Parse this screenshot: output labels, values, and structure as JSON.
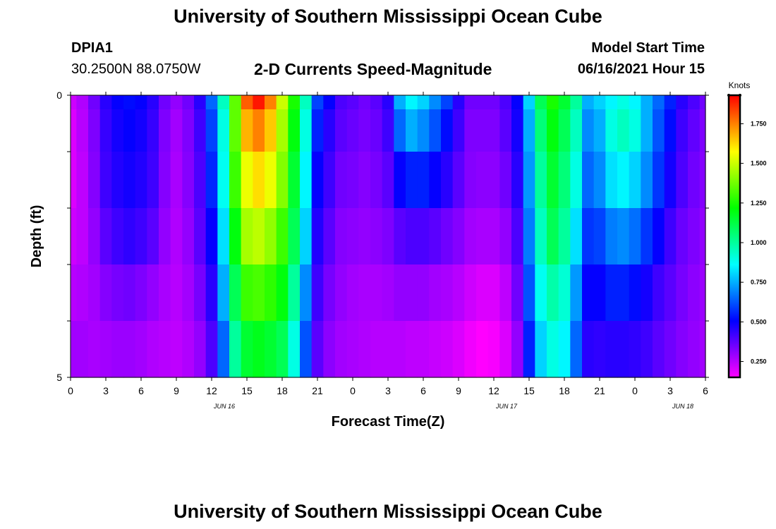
{
  "header": {
    "title": "University of Southern Mississippi Ocean Cube",
    "station_id": "DPIA1",
    "station_coords": "30.2500N  88.0750W",
    "plot_title": "2-D Currents Speed-Magnitude",
    "model_start_label": "Model Start Time",
    "model_start_value": "06/16/2021 Hour 15"
  },
  "footer": {
    "title": "University of Southern Mississippi Ocean Cube"
  },
  "chart_data": {
    "type": "heatmap",
    "xlabel": "Forecast Time(Z)",
    "ylabel": "Depth (ft)",
    "x_hours": [
      0,
      54
    ],
    "y_range": [
      0,
      5
    ],
    "x_tick_labels": [
      "0",
      "3",
      "6",
      "9",
      "12",
      "15",
      "18",
      "21",
      "0",
      "3",
      "6",
      "9",
      "12",
      "15",
      "18",
      "21",
      "0",
      "3",
      "6"
    ],
    "y_tick_labels": [
      "0",
      "5"
    ],
    "date_labels": [
      {
        "label": "JUN 16",
        "hour": 12
      },
      {
        "label": "JUN 17",
        "hour": 36
      },
      {
        "label": "JUN 18",
        "hour": 51
      }
    ],
    "colorbar": {
      "label": "Knots",
      "min": 0.15,
      "max": 1.93,
      "tick_labels": [
        "0.250",
        "0.500",
        "0.750",
        "1.000",
        "1.250",
        "1.500",
        "1.750"
      ],
      "tick_values": [
        0.25,
        0.5,
        0.75,
        1.0,
        1.25,
        1.5,
        1.75
      ]
    },
    "depth_levels": [
      0,
      0.5,
      1.5,
      2.5,
      3.5,
      4.5
    ],
    "time_hours": [
      0,
      1,
      2,
      3,
      4,
      5,
      6,
      7,
      8,
      9,
      10,
      11,
      12,
      13,
      14,
      15,
      16,
      17,
      18,
      19,
      20,
      21,
      22,
      23,
      24,
      25,
      26,
      27,
      28,
      29,
      30,
      31,
      32,
      33,
      34,
      35,
      36,
      37,
      38,
      39,
      40,
      41,
      42,
      43,
      44,
      45,
      46,
      47,
      48,
      49,
      50,
      51,
      52,
      53,
      54
    ],
    "speed_rows": [
      [
        0.22,
        0.26,
        0.35,
        0.45,
        0.5,
        0.52,
        0.5,
        0.45,
        0.35,
        0.3,
        0.35,
        0.45,
        0.65,
        0.95,
        1.35,
        1.8,
        1.9,
        1.75,
        1.5,
        1.25,
        0.95,
        0.6,
        0.5,
        0.4,
        0.38,
        0.35,
        0.38,
        0.45,
        0.75,
        0.85,
        0.8,
        0.7,
        0.6,
        0.45,
        0.35,
        0.35,
        0.35,
        0.4,
        0.5,
        0.8,
        1.1,
        1.25,
        1.15,
        1.0,
        0.75,
        0.8,
        0.85,
        0.9,
        0.85,
        0.75,
        0.65,
        0.55,
        0.45,
        0.4,
        0.35
      ],
      [
        0.2,
        0.25,
        0.33,
        0.43,
        0.48,
        0.5,
        0.48,
        0.43,
        0.33,
        0.28,
        0.33,
        0.42,
        0.6,
        0.9,
        1.35,
        1.68,
        1.75,
        1.65,
        1.45,
        1.2,
        0.9,
        0.55,
        0.45,
        0.38,
        0.36,
        0.34,
        0.36,
        0.42,
        0.65,
        0.75,
        0.7,
        0.62,
        0.52,
        0.42,
        0.33,
        0.33,
        0.33,
        0.38,
        0.48,
        0.75,
        1.05,
        1.2,
        1.1,
        0.95,
        0.7,
        0.75,
        0.9,
        0.95,
        0.9,
        0.75,
        0.62,
        0.52,
        0.42,
        0.37,
        0.33
      ],
      [
        0.2,
        0.24,
        0.32,
        0.42,
        0.46,
        0.48,
        0.46,
        0.42,
        0.32,
        0.27,
        0.32,
        0.4,
        0.56,
        0.88,
        1.3,
        1.55,
        1.62,
        1.55,
        1.4,
        1.15,
        0.85,
        0.5,
        0.42,
        0.35,
        0.34,
        0.32,
        0.34,
        0.38,
        0.5,
        0.55,
        0.55,
        0.5,
        0.45,
        0.38,
        0.32,
        0.31,
        0.31,
        0.35,
        0.45,
        0.72,
        1.0,
        1.15,
        1.05,
        0.9,
        0.65,
        0.7,
        0.82,
        0.85,
        0.8,
        0.7,
        0.58,
        0.48,
        0.4,
        0.35,
        0.32
      ],
      [
        0.22,
        0.24,
        0.3,
        0.38,
        0.42,
        0.44,
        0.42,
        0.38,
        0.3,
        0.26,
        0.3,
        0.38,
        0.5,
        0.82,
        1.2,
        1.45,
        1.48,
        1.42,
        1.3,
        1.1,
        0.8,
        0.46,
        0.38,
        0.32,
        0.31,
        0.3,
        0.31,
        0.33,
        0.38,
        0.4,
        0.4,
        0.38,
        0.35,
        0.32,
        0.28,
        0.27,
        0.27,
        0.3,
        0.4,
        0.68,
        0.95,
        1.1,
        1.0,
        0.82,
        0.58,
        0.6,
        0.68,
        0.7,
        0.66,
        0.58,
        0.5,
        0.42,
        0.36,
        0.33,
        0.3
      ],
      [
        0.25,
        0.26,
        0.28,
        0.32,
        0.34,
        0.35,
        0.33,
        0.3,
        0.27,
        0.25,
        0.28,
        0.34,
        0.45,
        0.75,
        1.1,
        1.3,
        1.32,
        1.28,
        1.2,
        1.0,
        0.7,
        0.42,
        0.34,
        0.3,
        0.28,
        0.27,
        0.27,
        0.28,
        0.3,
        0.3,
        0.3,
        0.28,
        0.27,
        0.25,
        0.22,
        0.2,
        0.2,
        0.24,
        0.35,
        0.62,
        0.88,
        0.98,
        0.92,
        0.72,
        0.5,
        0.5,
        0.55,
        0.55,
        0.52,
        0.48,
        0.42,
        0.38,
        0.34,
        0.31,
        0.29
      ],
      [
        0.28,
        0.28,
        0.27,
        0.28,
        0.29,
        0.29,
        0.28,
        0.26,
        0.25,
        0.24,
        0.26,
        0.3,
        0.4,
        0.65,
        1.0,
        1.15,
        1.18,
        1.15,
        1.1,
        0.9,
        0.62,
        0.38,
        0.31,
        0.28,
        0.27,
        0.26,
        0.25,
        0.25,
        0.25,
        0.24,
        0.24,
        0.23,
        0.22,
        0.2,
        0.17,
        0.15,
        0.16,
        0.2,
        0.3,
        0.55,
        0.8,
        0.9,
        0.85,
        0.65,
        0.45,
        0.44,
        0.45,
        0.45,
        0.44,
        0.42,
        0.38,
        0.35,
        0.32,
        0.3,
        0.28
      ]
    ]
  }
}
